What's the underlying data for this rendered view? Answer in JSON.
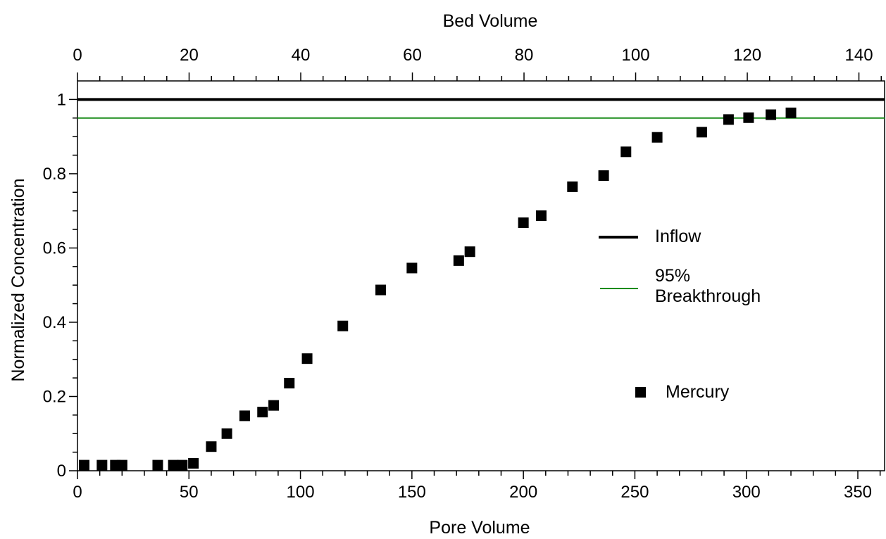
{
  "chart_data": {
    "type": "scatter",
    "title": "",
    "xlabel": "Pore Volume",
    "x2label": "Bed Volume",
    "ylabel": "Normalized Concentration",
    "xlim": [
      0,
      362
    ],
    "x2lim": [
      0,
      144.6
    ],
    "ylim": [
      0,
      1.05
    ],
    "xticks": [
      0,
      50,
      100,
      150,
      200,
      250,
      300,
      350
    ],
    "xtick_labels": [
      "0",
      "50",
      "100",
      "150",
      "200",
      "250",
      "300",
      "350"
    ],
    "x2ticks": [
      0,
      20,
      40,
      60,
      80,
      100,
      120,
      140
    ],
    "x2tick_labels": [
      "0",
      "20",
      "40",
      "60",
      "80",
      "100",
      "120",
      "140"
    ],
    "yticks": [
      0,
      0.2,
      0.4,
      0.6,
      0.8,
      1
    ],
    "ytick_labels": [
      "0",
      "0.2",
      "0.4",
      "0.6",
      "0.8",
      "1"
    ],
    "grid": false,
    "legend_position": "right",
    "series": [
      {
        "name": "Mercury",
        "kind": "scatter",
        "marker": "square",
        "color": "#000000",
        "x": [
          3,
          11,
          17,
          20,
          36,
          43,
          47,
          52,
          60,
          67,
          75,
          83,
          88,
          95,
          103,
          119,
          136,
          150,
          171,
          176,
          200,
          208,
          222,
          236,
          246,
          260,
          280,
          292,
          301,
          311,
          320
        ],
        "y": [
          0.015,
          0.015,
          0.015,
          0.015,
          0.015,
          0.015,
          0.015,
          0.02,
          0.065,
          0.1,
          0.148,
          0.158,
          0.176,
          0.236,
          0.302,
          0.39,
          0.487,
          0.546,
          0.566,
          0.59,
          0.668,
          0.687,
          0.765,
          0.795,
          0.859,
          0.898,
          0.912,
          0.946,
          0.951,
          0.959,
          0.964
        ]
      },
      {
        "name": "Inflow",
        "kind": "hline",
        "y": 1.0,
        "color": "#000000"
      },
      {
        "name": "95% Breakthrough",
        "name_lines": [
          "95%",
          "Breakthrough"
        ],
        "kind": "hline",
        "y": 0.95,
        "color": "#1a8c1a"
      }
    ]
  }
}
